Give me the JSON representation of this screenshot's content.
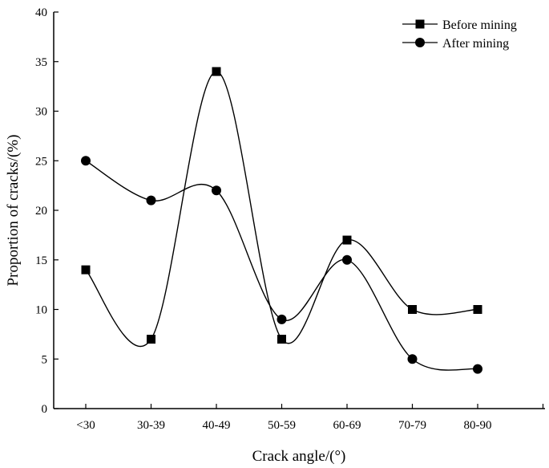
{
  "chart_data": {
    "type": "line",
    "title": "",
    "xlabel": "Crack angle/(°)",
    "ylabel": "Proportion of cracks/(%)",
    "categories": [
      "<30",
      "30-39",
      "40-49",
      "50-59",
      "60-69",
      "70-79",
      "80-90"
    ],
    "ylim": [
      0,
      40
    ],
    "yticks": [
      "0",
      "5",
      "10",
      "15",
      "20",
      "25",
      "30",
      "35",
      "40"
    ],
    "grid": false,
    "legend_position": "top-right",
    "series": [
      {
        "name": "Before mining",
        "marker": "square",
        "values": [
          14,
          7,
          34,
          7,
          17,
          10,
          10
        ]
      },
      {
        "name": "After mining",
        "marker": "circle",
        "values": [
          25,
          21,
          22,
          9,
          15,
          5,
          4
        ]
      }
    ]
  }
}
